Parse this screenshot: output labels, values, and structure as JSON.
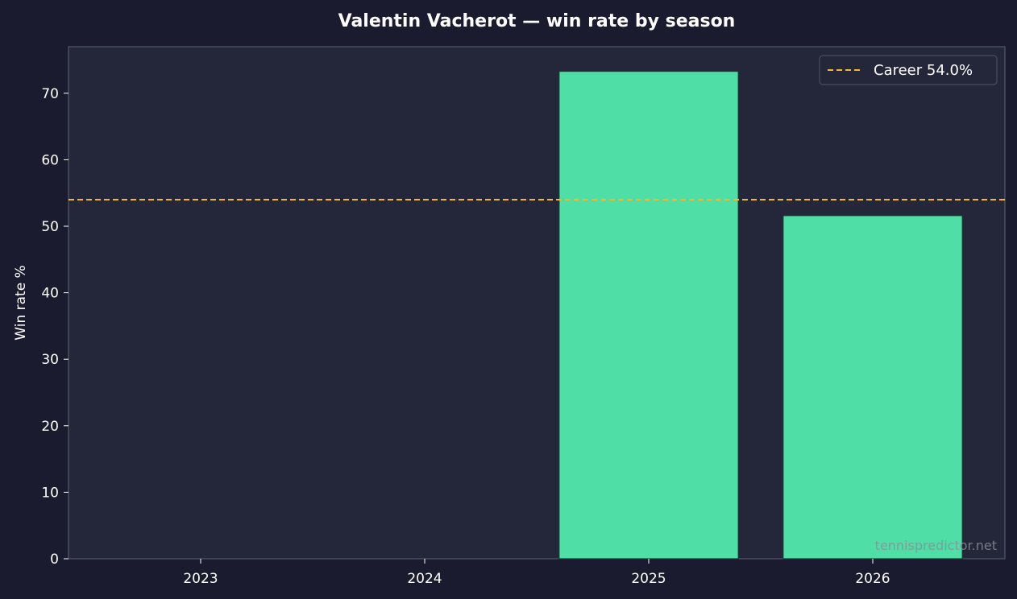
{
  "chart_data": {
    "type": "bar",
    "title": "Valentin Vacherot — win rate by season",
    "xlabel": "",
    "ylabel": "Win rate %",
    "categories": [
      "2023",
      "2024",
      "2025",
      "2026"
    ],
    "values": [
      0,
      0,
      73.3,
      51.6
    ],
    "ylim": [
      0,
      77
    ],
    "yticks": [
      0,
      10,
      20,
      30,
      40,
      50,
      60,
      70
    ],
    "grid": false,
    "legend_position": "top-right",
    "reference_line": {
      "label": "Career 54.0%",
      "value": 54.0,
      "style": "dashed"
    },
    "watermark": "tennispredictor.net"
  },
  "colors": {
    "page_background": "#1b1b2f",
    "plot_background": "#24263a",
    "bar": "#4fdea6",
    "bar_edge": "#1a3b33",
    "reference_line": "#f2b92c",
    "axis": "#55576a",
    "text": "#ffffff"
  }
}
